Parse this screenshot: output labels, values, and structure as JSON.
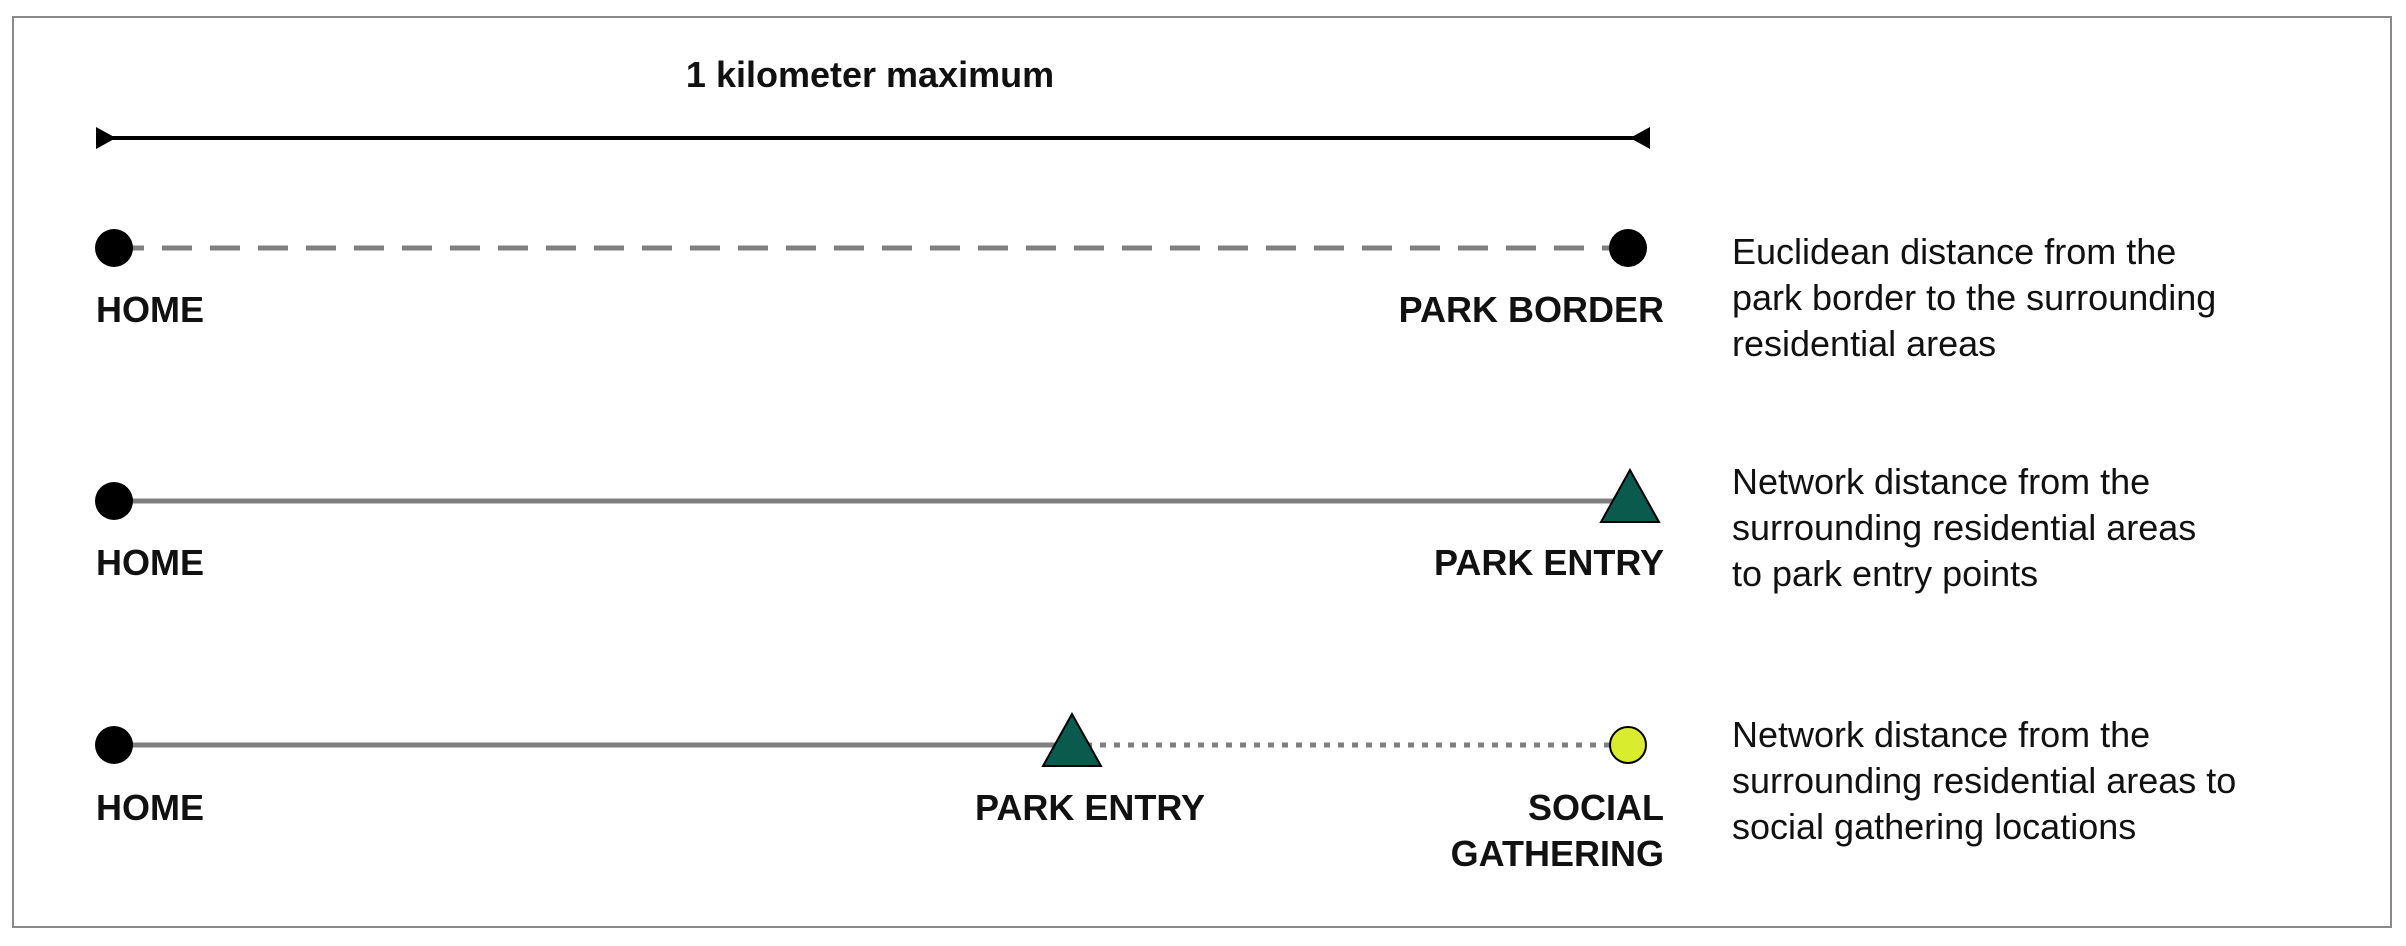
{
  "scale": {
    "label": "1 kilometer maximum"
  },
  "rows": [
    {
      "start_label": "HOME",
      "end_label": "PARK BORDER",
      "description": [
        "Euclidean distance from the",
        "park border to the surrounding",
        "residential areas"
      ]
    },
    {
      "start_label": "HOME",
      "end_label": "PARK ENTRY",
      "description": [
        "Network distance from the",
        "surrounding residential areas",
        "to park entry points"
      ]
    },
    {
      "start_label": "HOME",
      "mid_label": "PARK ENTRY",
      "end_label_lines": [
        "SOCIAL",
        "GATHERING"
      ],
      "description": [
        "Network distance from the",
        "surrounding residential areas to",
        "social gathering locations"
      ]
    }
  ],
  "colors": {
    "line_gray": "#7f7f7f",
    "dot_black": "#000000",
    "park_entry_teal": "#0b5a4e",
    "social_yellow": "#d9ec2e"
  }
}
